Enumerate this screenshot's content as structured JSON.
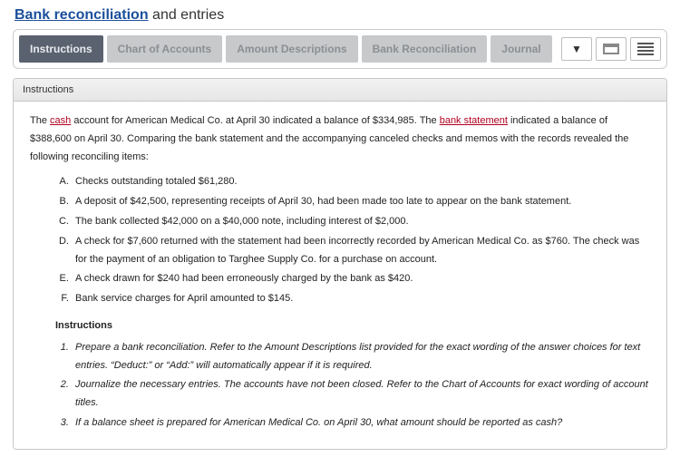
{
  "title": {
    "link_text": "Bank reconciliation",
    "rest_text": " and entries"
  },
  "tabs": {
    "items": [
      {
        "label": "Instructions",
        "active": true
      },
      {
        "label": "Chart of Accounts",
        "active": false
      },
      {
        "label": "Amount Descriptions",
        "active": false
      },
      {
        "label": "Bank Reconciliation",
        "active": false
      },
      {
        "label": "Journal",
        "active": false
      }
    ]
  },
  "panel": {
    "header": "Instructions",
    "intro_parts": {
      "p1a": "The ",
      "cash_link": "cash",
      "p1b": " account for American Medical Co. at April 30 indicated a balance of $334,985. The ",
      "bank_link": "bank statement",
      "p1c": " indicated a balance of $388,600 on April 30. Comparing the bank statement and the accompanying canceled checks and memos with the records revealed the following reconciling items:"
    },
    "items_letter": [
      "Checks outstanding totaled $61,280.",
      "A deposit of $42,500, representing receipts of April 30, had been made too late to appear on the bank statement.",
      "The bank collected $42,000 on a $40,000 note, including interest of $2,000.",
      "A check for $7,600 returned with the statement had been incorrectly recorded by American Medical Co. as $760. The check was for the payment of an obligation to Targhee Supply Co. for a purchase on account.",
      "A check drawn for $240 had been erroneously charged by the bank as $420.",
      "Bank service charges for April amounted to $145."
    ],
    "sub_heading": "Instructions",
    "items_num": [
      "Prepare a bank reconciliation. Refer to the Amount Descriptions list provided for the exact wording of the answer choices for text entries. “Deduct:” or “Add:” will automatically appear if it is required.",
      "Journalize the necessary entries. The accounts have not been closed. Refer to the Chart of Accounts for exact wording of account titles.",
      "If a balance sheet is prepared for American Medical Co. on April 30, what amount should be reported as cash?"
    ]
  },
  "colors": {
    "title_link": "#1a4f9c",
    "active_tab_bg": "#5a6270",
    "inactive_tab_bg": "#c7c9cb",
    "body_link": "#b00020",
    "border": "#c7c7c7"
  }
}
